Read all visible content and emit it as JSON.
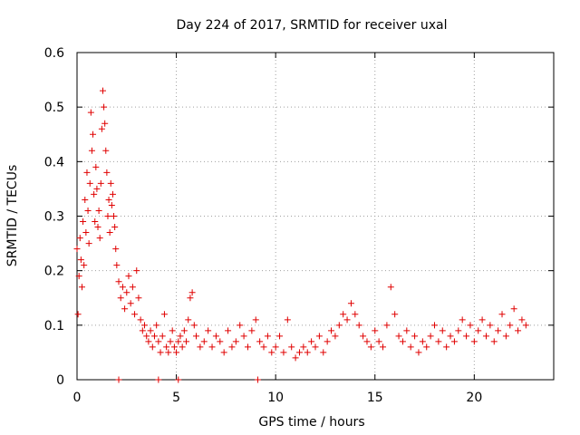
{
  "chart_data": {
    "type": "scatter",
    "title": "Day 224 of 2017, SRMTID for receiver uxal",
    "xlabel": "GPS time / hours",
    "ylabel": "SRMTID / TECUs",
    "xlim": [
      0,
      24
    ],
    "ylim": [
      0,
      0.6
    ],
    "x_ticks": [
      "0",
      "5",
      "10",
      "15",
      "20"
    ],
    "y_ticks": [
      "0",
      "0.1",
      "0.2",
      "0.3",
      "0.4",
      "0.5",
      "0.6"
    ],
    "grid": true,
    "marker": "plus",
    "color": "#e00000",
    "series": [
      {
        "name": "SRMTID",
        "points": [
          [
            0.0,
            0.24
          ],
          [
            0.05,
            0.12
          ],
          [
            0.1,
            0.19
          ],
          [
            0.15,
            0.26
          ],
          [
            0.2,
            0.22
          ],
          [
            0.25,
            0.17
          ],
          [
            0.3,
            0.29
          ],
          [
            0.35,
            0.21
          ],
          [
            0.4,
            0.33
          ],
          [
            0.45,
            0.27
          ],
          [
            0.5,
            0.38
          ],
          [
            0.55,
            0.31
          ],
          [
            0.6,
            0.25
          ],
          [
            0.65,
            0.36
          ],
          [
            0.7,
            0.49
          ],
          [
            0.75,
            0.42
          ],
          [
            0.8,
            0.45
          ],
          [
            0.85,
            0.34
          ],
          [
            0.9,
            0.29
          ],
          [
            0.95,
            0.39
          ],
          [
            1.0,
            0.35
          ],
          [
            1.05,
            0.28
          ],
          [
            1.1,
            0.31
          ],
          [
            1.15,
            0.26
          ],
          [
            1.2,
            0.36
          ],
          [
            1.25,
            0.46
          ],
          [
            1.3,
            0.53
          ],
          [
            1.35,
            0.5
          ],
          [
            1.4,
            0.47
          ],
          [
            1.45,
            0.42
          ],
          [
            1.5,
            0.38
          ],
          [
            1.55,
            0.3
          ],
          [
            1.6,
            0.33
          ],
          [
            1.65,
            0.27
          ],
          [
            1.7,
            0.36
          ],
          [
            1.75,
            0.32
          ],
          [
            1.8,
            0.34
          ],
          [
            1.85,
            0.3
          ],
          [
            1.9,
            0.28
          ],
          [
            1.95,
            0.24
          ],
          [
            2.0,
            0.21
          ],
          [
            2.1,
            0.18
          ],
          [
            2.2,
            0.15
          ],
          [
            2.3,
            0.17
          ],
          [
            2.4,
            0.13
          ],
          [
            2.5,
            0.16
          ],
          [
            2.6,
            0.19
          ],
          [
            2.7,
            0.14
          ],
          [
            2.8,
            0.17
          ],
          [
            2.9,
            0.12
          ],
          [
            3.0,
            0.2
          ],
          [
            3.1,
            0.15
          ],
          [
            3.2,
            0.11
          ],
          [
            3.3,
            0.09
          ],
          [
            3.4,
            0.1
          ],
          [
            3.5,
            0.08
          ],
          [
            3.6,
            0.07
          ],
          [
            3.7,
            0.09
          ],
          [
            3.8,
            0.06
          ],
          [
            3.9,
            0.08
          ],
          [
            4.0,
            0.1
          ],
          [
            4.1,
            0.07
          ],
          [
            4.2,
            0.05
          ],
          [
            4.3,
            0.08
          ],
          [
            4.4,
            0.12
          ],
          [
            4.5,
            0.06
          ],
          [
            4.6,
            0.05
          ],
          [
            4.7,
            0.07
          ],
          [
            4.8,
            0.09
          ],
          [
            4.9,
            0.06
          ],
          [
            5.0,
            0.05
          ],
          [
            5.1,
            0.07
          ],
          [
            5.2,
            0.08
          ],
          [
            5.3,
            0.06
          ],
          [
            5.4,
            0.09
          ],
          [
            5.5,
            0.07
          ],
          [
            5.6,
            0.11
          ],
          [
            5.7,
            0.15
          ],
          [
            5.8,
            0.16
          ],
          [
            5.9,
            0.1
          ],
          [
            6.0,
            0.08
          ],
          [
            6.2,
            0.06
          ],
          [
            6.4,
            0.07
          ],
          [
            6.6,
            0.09
          ],
          [
            6.8,
            0.06
          ],
          [
            7.0,
            0.08
          ],
          [
            7.2,
            0.07
          ],
          [
            7.4,
            0.05
          ],
          [
            7.6,
            0.09
          ],
          [
            7.8,
            0.06
          ],
          [
            8.0,
            0.07
          ],
          [
            8.2,
            0.1
          ],
          [
            8.4,
            0.08
          ],
          [
            8.6,
            0.06
          ],
          [
            8.8,
            0.09
          ],
          [
            9.0,
            0.11
          ],
          [
            9.2,
            0.07
          ],
          [
            9.4,
            0.06
          ],
          [
            9.6,
            0.08
          ],
          [
            9.8,
            0.05
          ],
          [
            10.0,
            0.06
          ],
          [
            10.2,
            0.08
          ],
          [
            10.4,
            0.05
          ],
          [
            10.6,
            0.11
          ],
          [
            10.8,
            0.06
          ],
          [
            11.0,
            0.04
          ],
          [
            11.2,
            0.05
          ],
          [
            11.4,
            0.06
          ],
          [
            11.6,
            0.05
          ],
          [
            11.8,
            0.07
          ],
          [
            12.0,
            0.06
          ],
          [
            12.2,
            0.08
          ],
          [
            12.4,
            0.05
          ],
          [
            12.6,
            0.07
          ],
          [
            12.8,
            0.09
          ],
          [
            13.0,
            0.08
          ],
          [
            13.2,
            0.1
          ],
          [
            13.4,
            0.12
          ],
          [
            13.6,
            0.11
          ],
          [
            13.8,
            0.14
          ],
          [
            14.0,
            0.12
          ],
          [
            14.2,
            0.1
          ],
          [
            14.4,
            0.08
          ],
          [
            14.6,
            0.07
          ],
          [
            14.8,
            0.06
          ],
          [
            15.0,
            0.09
          ],
          [
            15.2,
            0.07
          ],
          [
            15.4,
            0.06
          ],
          [
            15.6,
            0.1
          ],
          [
            15.8,
            0.17
          ],
          [
            16.0,
            0.12
          ],
          [
            16.2,
            0.08
          ],
          [
            16.4,
            0.07
          ],
          [
            16.6,
            0.09
          ],
          [
            16.8,
            0.06
          ],
          [
            17.0,
            0.08
          ],
          [
            17.2,
            0.05
          ],
          [
            17.4,
            0.07
          ],
          [
            17.6,
            0.06
          ],
          [
            17.8,
            0.08
          ],
          [
            18.0,
            0.1
          ],
          [
            18.2,
            0.07
          ],
          [
            18.4,
            0.09
          ],
          [
            18.6,
            0.06
          ],
          [
            18.8,
            0.08
          ],
          [
            19.0,
            0.07
          ],
          [
            19.2,
            0.09
          ],
          [
            19.4,
            0.11
          ],
          [
            19.6,
            0.08
          ],
          [
            19.8,
            0.1
          ],
          [
            20.0,
            0.07
          ],
          [
            20.2,
            0.09
          ],
          [
            20.4,
            0.11
          ],
          [
            20.6,
            0.08
          ],
          [
            20.8,
            0.1
          ],
          [
            21.0,
            0.07
          ],
          [
            21.2,
            0.09
          ],
          [
            21.4,
            0.12
          ],
          [
            21.6,
            0.08
          ],
          [
            21.8,
            0.1
          ],
          [
            22.0,
            0.13
          ],
          [
            22.2,
            0.09
          ],
          [
            22.4,
            0.11
          ],
          [
            22.6,
            0.1
          ],
          [
            2.1,
            0.0
          ],
          [
            4.1,
            0.0
          ],
          [
            5.1,
            0.0
          ],
          [
            9.1,
            0.0
          ]
        ]
      }
    ]
  }
}
